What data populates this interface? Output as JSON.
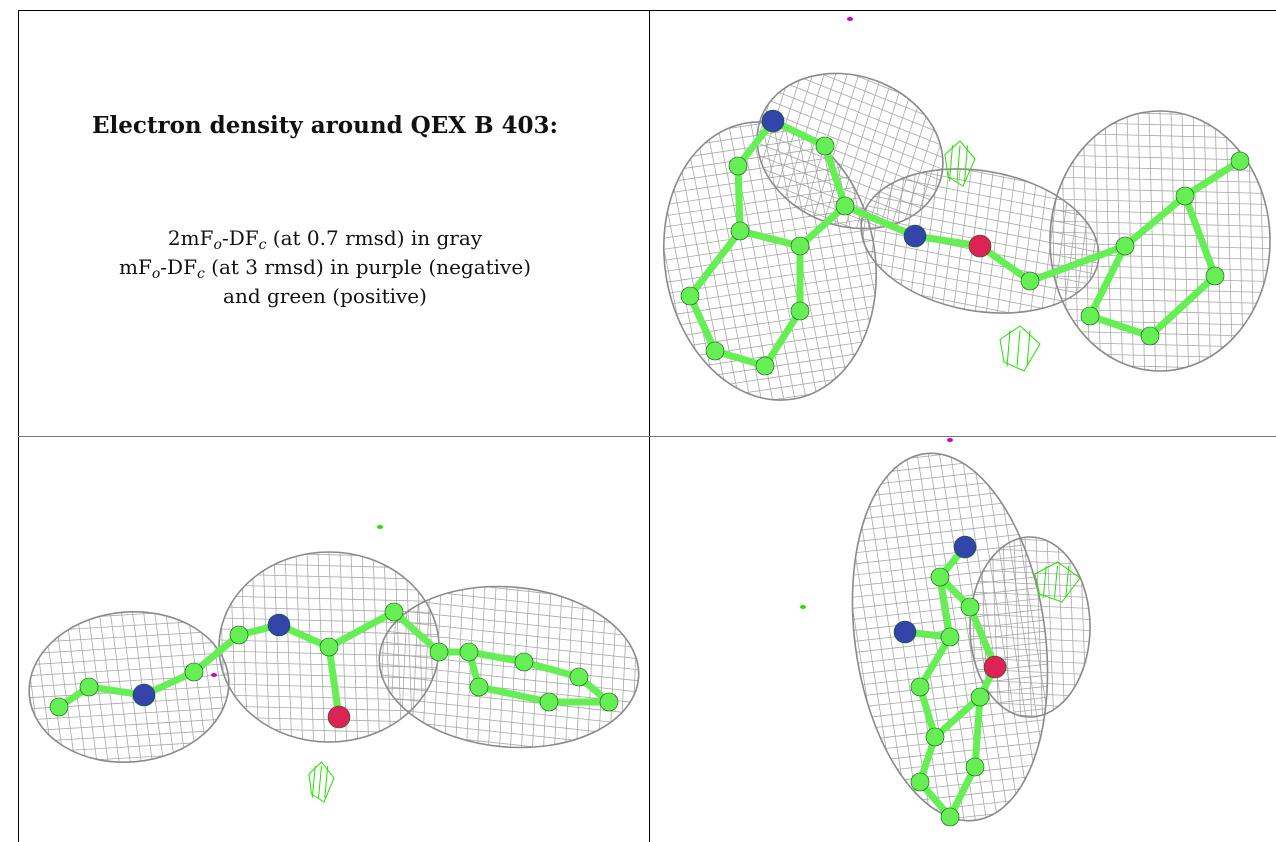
{
  "caption": {
    "title": "Electron density around QEX B 403:",
    "line1": {
      "prefix": "2mF",
      "sub1": "o",
      "mid": "-DF",
      "sub2": "c",
      "suffix": " (at 0.7 rmsd) in gray"
    },
    "line2": {
      "prefix": "mF",
      "sub1": "o",
      "mid": "-DF",
      "sub2": "c",
      "suffix": " (at 3 rmsd) in purple (negative)"
    },
    "line3": "and green (positive)"
  },
  "panels": [
    {
      "name": "view-top-right",
      "ligand": "QEX B 403"
    },
    {
      "name": "view-bottom-left",
      "ligand": "QEX B 403"
    },
    {
      "name": "view-bottom-right",
      "ligand": "QEX B 403"
    }
  ],
  "colors": {
    "mesh_2fofc": "#9a9a9a",
    "difference_positive": "#22e000",
    "difference_negative": "#cc00cc",
    "carbon": "#66ee55",
    "nitrogen": "#3344aa",
    "oxygen": "#dd2255"
  }
}
